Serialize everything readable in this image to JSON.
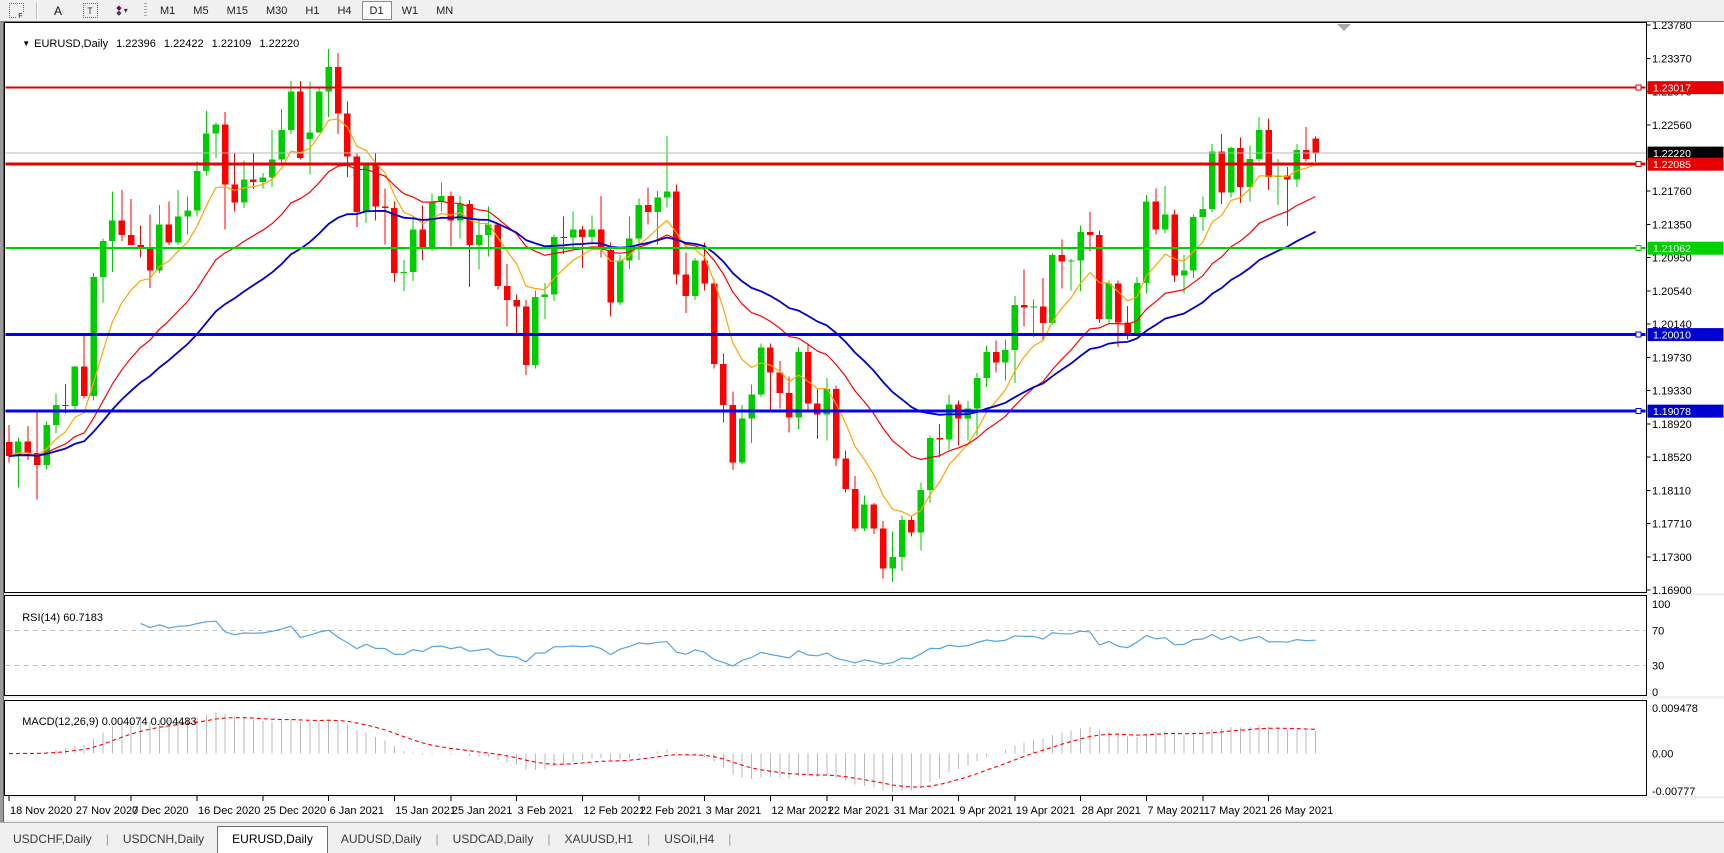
{
  "toolbar": {
    "tools": [
      {
        "name": "crosshair-tool",
        "label": "F"
      },
      {
        "name": "text-tool",
        "label": "A"
      },
      {
        "name": "label-tool",
        "label": "T"
      },
      {
        "name": "arrows-tool",
        "label": "▾"
      }
    ],
    "timeframes": [
      "M1",
      "M5",
      "M15",
      "M30",
      "H1",
      "H4",
      "D1",
      "W1",
      "MN"
    ],
    "active_timeframe": "D1"
  },
  "chart": {
    "symbol_title": "EURUSD,Daily",
    "quote": {
      "open": "1.22396",
      "high": "1.22422",
      "low": "1.22109",
      "close": "1.22220"
    }
  },
  "price_axis": {
    "ticks": [
      "1.23780",
      "1.23370",
      "1.22970",
      "1.22560",
      "1.22150",
      "1.21760",
      "1.21350",
      "1.20950",
      "1.20540",
      "1.20140",
      "1.19730",
      "1.19330",
      "1.18920",
      "1.18520",
      "1.18110",
      "1.17710",
      "1.17300",
      "1.16900"
    ]
  },
  "hlines": [
    {
      "price": 1.23017,
      "label": "1.23017",
      "color": "#e60000",
      "width": 2,
      "badge_bg": "#e60000"
    },
    {
      "price": 1.2222,
      "label": "1.22220",
      "color": "#b8b8b8",
      "width": 1,
      "badge_bg": "#000000"
    },
    {
      "price": 1.22085,
      "label": "1.22085",
      "color": "#e60000",
      "width": 3,
      "badge_bg": "#e60000"
    },
    {
      "price": 1.21062,
      "label": "1.21062",
      "color": "#00d000",
      "width": 2,
      "badge_bg": "#00d000"
    },
    {
      "price": 1.2001,
      "label": "1.20010",
      "color": "#0000ff",
      "width": 3,
      "badge_bg": "#0000cf"
    },
    {
      "price": 1.19078,
      "label": "1.19078",
      "color": "#0000ff",
      "width": 3,
      "badge_bg": "#0000cf"
    }
  ],
  "chart_data": {
    "type": "candlestick",
    "symbol": "EURUSD",
    "timeframe": "Daily",
    "ylim": [
      1.169,
      1.2378
    ],
    "moving_averages": [
      {
        "period": 8,
        "method": "ema",
        "color": "#ffa500",
        "width": 1.2
      },
      {
        "period": 20,
        "method": "ema",
        "color": "#ff0000",
        "width": 1.2
      },
      {
        "period": 34,
        "method": "ema",
        "color": "#0000c8",
        "width": 1.8
      }
    ],
    "bull_color": "#00cd00",
    "bear_color": "#ff0000",
    "candles": [
      [
        1.187,
        1.1891,
        1.1845,
        1.1853
      ],
      [
        1.1853,
        1.1876,
        1.1815,
        1.1871
      ],
      [
        1.1871,
        1.189,
        1.1848,
        1.1857
      ],
      [
        1.1857,
        1.1906,
        1.18,
        1.1842
      ],
      [
        1.1842,
        1.1895,
        1.1837,
        1.1891
      ],
      [
        1.1891,
        1.1929,
        1.1881,
        1.1915
      ],
      [
        1.1915,
        1.1941,
        1.1905,
        1.1914
      ],
      [
        1.1914,
        1.1963,
        1.1907,
        1.1962
      ],
      [
        1.1962,
        1.2003,
        1.1923,
        1.1926
      ],
      [
        1.1926,
        1.2076,
        1.1921,
        1.2071
      ],
      [
        1.2071,
        1.2118,
        1.204,
        1.2115
      ],
      [
        1.2115,
        1.2175,
        1.2077,
        1.214
      ],
      [
        1.214,
        1.2177,
        1.2115,
        1.2122
      ],
      [
        1.2122,
        1.2166,
        1.211,
        1.211
      ],
      [
        1.211,
        1.2134,
        1.2095,
        1.2106
      ],
      [
        1.2106,
        1.2147,
        1.2058,
        1.2079
      ],
      [
        1.2079,
        1.2159,
        1.2076,
        1.2135
      ],
      [
        1.2135,
        1.2163,
        1.211,
        1.2113
      ],
      [
        1.2113,
        1.2177,
        1.211,
        1.2145
      ],
      [
        1.2145,
        1.2169,
        1.2123,
        1.2152
      ],
      [
        1.2152,
        1.2212,
        1.2145,
        1.22
      ],
      [
        1.22,
        1.2273,
        1.2195,
        1.2246
      ],
      [
        1.2246,
        1.2259,
        1.2216,
        1.2257
      ],
      [
        1.2257,
        1.2272,
        1.2129,
        1.2184
      ],
      [
        1.2184,
        1.2222,
        1.2151,
        1.2162
      ],
      [
        1.2162,
        1.2213,
        1.2155,
        1.219
      ],
      [
        1.219,
        1.2222,
        1.2178,
        1.2187
      ],
      [
        1.2187,
        1.2198,
        1.2179,
        1.2192
      ],
      [
        1.2192,
        1.225,
        1.2181,
        1.2214
      ],
      [
        1.2214,
        1.2276,
        1.221,
        1.225
      ],
      [
        1.225,
        1.231,
        1.2245,
        1.2297
      ],
      [
        1.2297,
        1.231,
        1.2214,
        1.2216
      ],
      [
        1.2239,
        1.2309,
        1.2196,
        1.2247
      ],
      [
        1.2247,
        1.2303,
        1.2247,
        1.2297
      ],
      [
        1.2297,
        1.2349,
        1.2266,
        1.2327
      ],
      [
        1.2327,
        1.2344,
        1.2245,
        1.227
      ],
      [
        1.227,
        1.2285,
        1.2193,
        1.2218
      ],
      [
        1.2218,
        1.2223,
        1.2132,
        1.215
      ],
      [
        1.215,
        1.221,
        1.2137,
        1.2207
      ],
      [
        1.2207,
        1.2223,
        1.214,
        1.2157
      ],
      [
        1.2157,
        1.2179,
        1.2111,
        1.2155
      ],
      [
        1.2155,
        1.2163,
        1.2065,
        1.2076
      ],
      [
        1.2076,
        1.2092,
        1.2054,
        1.2077
      ],
      [
        1.2077,
        1.2145,
        1.2066,
        1.2129
      ],
      [
        1.2129,
        1.2158,
        1.2092,
        1.2105
      ],
      [
        1.2105,
        1.2173,
        1.2103,
        1.2163
      ],
      [
        1.2163,
        1.2186,
        1.2151,
        1.217
      ],
      [
        1.217,
        1.2175,
        1.2108,
        1.214
      ],
      [
        1.214,
        1.217,
        1.2118,
        1.216
      ],
      [
        1.216,
        1.2165,
        1.2059,
        1.211
      ],
      [
        1.211,
        1.2142,
        1.208,
        1.2122
      ],
      [
        1.2122,
        1.2157,
        1.2096,
        1.2135
      ],
      [
        1.2135,
        1.2136,
        1.2056,
        1.206
      ],
      [
        1.206,
        1.2087,
        1.2011,
        1.2043
      ],
      [
        1.2043,
        1.205,
        1.2003,
        1.2035
      ],
      [
        1.2035,
        1.2043,
        1.1952,
        1.1964
      ],
      [
        1.1964,
        1.2055,
        1.196,
        1.2047
      ],
      [
        1.2047,
        1.2064,
        1.202,
        1.205
      ],
      [
        1.205,
        1.2123,
        1.2042,
        1.212
      ],
      [
        1.212,
        1.2145,
        1.2099,
        1.2119
      ],
      [
        1.2119,
        1.2151,
        1.2106,
        1.2129
      ],
      [
        1.2129,
        1.2133,
        1.2082,
        1.212
      ],
      [
        1.212,
        1.2146,
        1.2111,
        1.2129
      ],
      [
        1.2129,
        1.217,
        1.2095,
        1.2104
      ],
      [
        1.2104,
        1.2113,
        1.2023,
        1.204
      ],
      [
        1.204,
        1.2098,
        1.2037,
        1.2091
      ],
      [
        1.2091,
        1.2145,
        1.2081,
        1.2118
      ],
      [
        1.2118,
        1.2167,
        1.2092,
        1.2159
      ],
      [
        1.2159,
        1.218,
        1.2135,
        1.215
      ],
      [
        1.215,
        1.2176,
        1.211,
        1.2168
      ],
      [
        1.2168,
        1.2243,
        1.2156,
        1.2175
      ],
      [
        1.2175,
        1.2184,
        1.2062,
        1.2074
      ],
      [
        1.2074,
        1.2101,
        1.2027,
        1.2048
      ],
      [
        1.2048,
        1.2094,
        1.2043,
        1.2091
      ],
      [
        1.2091,
        1.2113,
        1.2055,
        1.2063
      ],
      [
        1.2063,
        1.2069,
        1.196,
        1.1965
      ],
      [
        1.1965,
        1.1978,
        1.1894,
        1.1915
      ],
      [
        1.1915,
        1.1932,
        1.1836,
        1.1845
      ],
      [
        1.1845,
        1.1915,
        1.1843,
        1.1899
      ],
      [
        1.1899,
        1.194,
        1.1869,
        1.1928
      ],
      [
        1.1928,
        1.199,
        1.1925,
        1.1985
      ],
      [
        1.1985,
        1.199,
        1.191,
        1.1955
      ],
      [
        1.1955,
        1.1969,
        1.1911,
        1.193
      ],
      [
        1.193,
        1.195,
        1.1882,
        1.19
      ],
      [
        1.19,
        1.1986,
        1.1886,
        1.198
      ],
      [
        1.198,
        1.1989,
        1.1906,
        1.1917
      ],
      [
        1.1917,
        1.1935,
        1.1874,
        1.1904
      ],
      [
        1.1904,
        1.1948,
        1.1872,
        1.1935
      ],
      [
        1.1935,
        1.1939,
        1.1841,
        1.185
      ],
      [
        1.185,
        1.186,
        1.1809,
        1.1813
      ],
      [
        1.1813,
        1.1829,
        1.1761,
        1.1765
      ],
      [
        1.1765,
        1.1805,
        1.1762,
        1.1794
      ],
      [
        1.1794,
        1.1796,
        1.1758,
        1.1765
      ],
      [
        1.1765,
        1.1774,
        1.1704,
        1.1716
      ],
      [
        1.1716,
        1.1761,
        1.17,
        1.173
      ],
      [
        1.173,
        1.1781,
        1.1713,
        1.1775
      ],
      [
        1.1775,
        1.178,
        1.1755,
        1.176
      ],
      [
        1.176,
        1.1821,
        1.1738,
        1.1812
      ],
      [
        1.1812,
        1.1878,
        1.1796,
        1.1875
      ],
      [
        1.1875,
        1.1892,
        1.1852,
        1.1873
      ],
      [
        1.1873,
        1.1928,
        1.1861,
        1.1916
      ],
      [
        1.1916,
        1.1921,
        1.1866,
        1.1899
      ],
      [
        1.1899,
        1.192,
        1.1872,
        1.1911
      ],
      [
        1.1911,
        1.1954,
        1.1878,
        1.1948
      ],
      [
        1.1948,
        1.1988,
        1.1937,
        1.198
      ],
      [
        1.198,
        1.1994,
        1.1955,
        1.1967
      ],
      [
        1.1967,
        1.1995,
        1.1945,
        1.1982
      ],
      [
        1.1982,
        1.2048,
        1.1942,
        1.2037
      ],
      [
        1.2037,
        1.208,
        1.2011,
        1.2034
      ],
      [
        1.2034,
        1.2044,
        1.1998,
        1.2035
      ],
      [
        1.2035,
        1.207,
        1.1994,
        1.2015
      ],
      [
        1.2015,
        1.21,
        1.2013,
        1.2098
      ],
      [
        1.2098,
        1.2117,
        1.2057,
        1.209
      ],
      [
        1.209,
        1.2093,
        1.2055,
        1.2091
      ],
      [
        1.2091,
        1.2134,
        1.2054,
        1.2126
      ],
      [
        1.2126,
        1.215,
        1.2102,
        1.2122
      ],
      [
        1.2122,
        1.2128,
        1.2015,
        1.202
      ],
      [
        1.202,
        1.2067,
        1.2013,
        1.2063
      ],
      [
        1.2063,
        1.2067,
        1.1986,
        1.2016
      ],
      [
        1.2016,
        1.2036,
        1.1995,
        1.2003
      ],
      [
        1.2003,
        1.2071,
        1.2,
        1.2064
      ],
      [
        1.2064,
        1.2171,
        1.2051,
        1.2163
      ],
      [
        1.2163,
        1.2179,
        1.2123,
        1.2129
      ],
      [
        1.2129,
        1.2182,
        1.2124,
        1.2147
      ],
      [
        1.2147,
        1.2153,
        1.2065,
        1.2073
      ],
      [
        1.2073,
        1.2098,
        1.2051,
        1.2079
      ],
      [
        1.2079,
        1.2147,
        1.207,
        1.2144
      ],
      [
        1.2144,
        1.2169,
        1.2127,
        1.2154
      ],
      [
        1.2154,
        1.2233,
        1.215,
        1.2224
      ],
      [
        1.2224,
        1.2245,
        1.216,
        1.2174
      ],
      [
        1.2174,
        1.223,
        1.2168,
        1.2228
      ],
      [
        1.2228,
        1.2241,
        1.2161,
        1.2181
      ],
      [
        1.2181,
        1.2231,
        1.2163,
        1.2215
      ],
      [
        1.2215,
        1.2266,
        1.2212,
        1.225
      ],
      [
        1.225,
        1.2264,
        1.2177,
        1.2193
      ],
      [
        1.2193,
        1.2215,
        1.2159,
        1.2195
      ],
      [
        1.2195,
        1.2205,
        1.2133,
        1.219
      ],
      [
        1.219,
        1.2233,
        1.2181,
        1.2226
      ],
      [
        1.2226,
        1.2254,
        1.2212,
        1.2215
      ],
      [
        1.224,
        1.2242,
        1.2211,
        1.2222
      ]
    ],
    "date_labels": [
      {
        "text": "18 Nov 2020",
        "bar": 0
      },
      {
        "text": "27 Nov 2020",
        "bar": 7
      },
      {
        "text": "7 Dec 2020",
        "bar": 13
      },
      {
        "text": "16 Dec 2020",
        "bar": 20
      },
      {
        "text": "25 Dec 2020",
        "bar": 27
      },
      {
        "text": "6 Jan 2021",
        "bar": 34
      },
      {
        "text": "15 Jan 2021",
        "bar": 41
      },
      {
        "text": "25 Jan 2021",
        "bar": 47
      },
      {
        "text": "3 Feb 2021",
        "bar": 54
      },
      {
        "text": "12 Feb 2021",
        "bar": 61
      },
      {
        "text": "22 Feb 2021",
        "bar": 67
      },
      {
        "text": "3 Mar 2021",
        "bar": 74
      },
      {
        "text": "12 Mar 2021",
        "bar": 81
      },
      {
        "text": "22 Mar 2021",
        "bar": 87
      },
      {
        "text": "31 Mar 2021",
        "bar": 94
      },
      {
        "text": "9 Apr 2021",
        "bar": 101
      },
      {
        "text": "19 Apr 2021",
        "bar": 107
      },
      {
        "text": "28 Apr 2021",
        "bar": 114
      },
      {
        "text": "7 May 2021",
        "bar": 121
      },
      {
        "text": "17 May 2021",
        "bar": 127
      },
      {
        "text": "26 May 2021",
        "bar": 134
      }
    ]
  },
  "rsi": {
    "label": "RSI(14)",
    "value": "60.7183",
    "axis_labels": [
      "100",
      "70",
      "30",
      "0"
    ],
    "level_lines": [
      70,
      30
    ],
    "ylim": [
      0,
      100
    ],
    "line_color": "#55a5e0",
    "level_color": "#c0c0c0"
  },
  "macd": {
    "label": "MACD(12,26,9)",
    "value_main": "0.004074",
    "value_signal": "0.004483",
    "axis_labels": [
      "0.009478",
      "0.00",
      "-0.00777"
    ],
    "ylim": [
      -0.00777,
      0.009478
    ],
    "histogram_color": "#b8b8b8",
    "signal_color": "#ff0000"
  },
  "tabs": [
    {
      "label": "USDCHF,Daily",
      "active": false
    },
    {
      "label": "USDCNH,Daily",
      "active": false
    },
    {
      "label": "EURUSD,Daily",
      "active": true
    },
    {
      "label": "AUDUSD,Daily",
      "active": false
    },
    {
      "label": "USDCAD,Daily",
      "active": false
    },
    {
      "label": "XAUUSD,H1",
      "active": false
    },
    {
      "label": "USOil,H4",
      "active": false
    }
  ]
}
